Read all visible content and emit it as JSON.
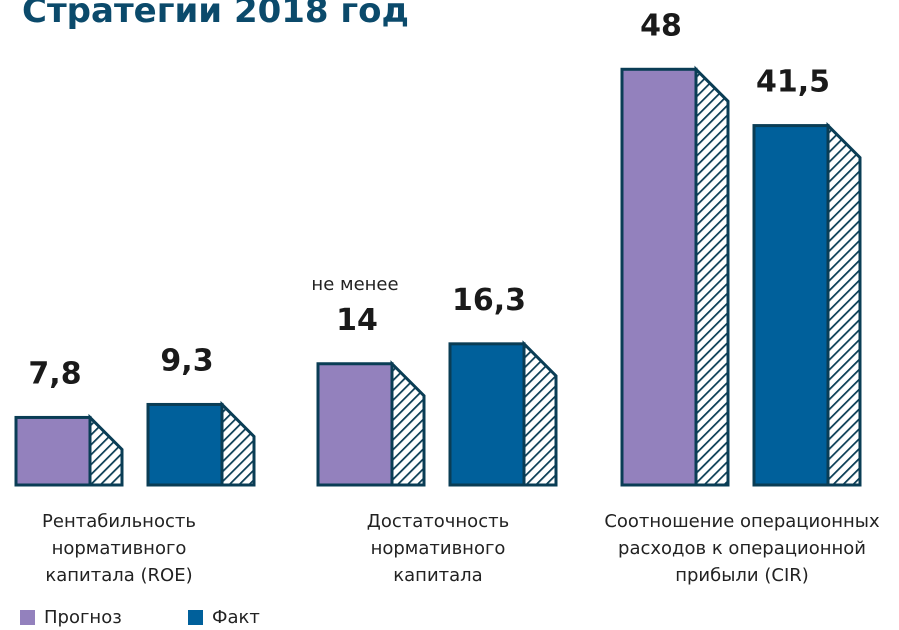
{
  "chart_data": {
    "type": "bar",
    "title": "Стратегии 2018 год",
    "categories": [
      "Рентабильность\nнормативного\nкапитала (ROE)",
      "Достаточность\nнормативного\nкапитала",
      "Соотношение операционных\nрасходов к операционной\nприбыли (CIR)"
    ],
    "series": [
      {
        "name": "Прогноз",
        "color": "#9381bd",
        "values": [
          7.8,
          14,
          48
        ],
        "value_labels": [
          "7,8",
          "14",
          "48"
        ]
      },
      {
        "name": "Факт",
        "color": "#00609b",
        "values": [
          9.3,
          16.3,
          41.5
        ],
        "value_labels": [
          "9,3",
          "16,3",
          "41,5"
        ]
      }
    ],
    "annotations": [
      "не менее"
    ],
    "ylim": [
      0,
      56
    ]
  }
}
